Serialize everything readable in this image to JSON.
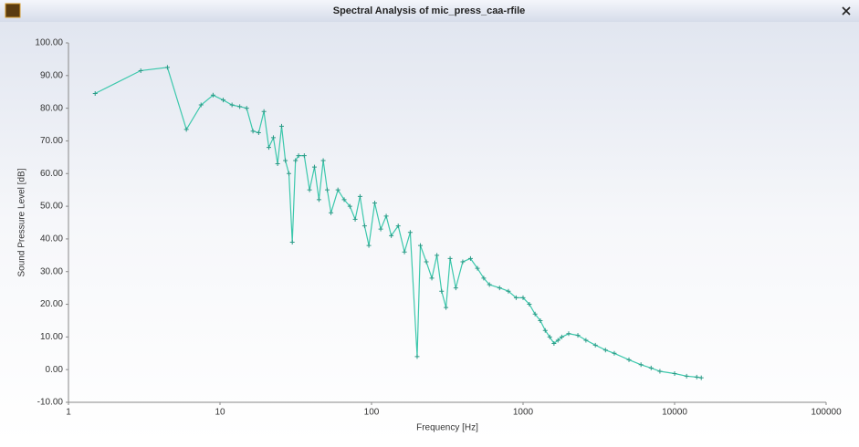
{
  "chart_data": {
    "type": "line",
    "title": "Spectral Analysis of mic_press_caa-rfile",
    "x_label": "Frequency [Hz]",
    "y_label": "Sound Pressure Level [dB]",
    "xscale": "log",
    "grid": false,
    "color": "#3cc8ac",
    "xlim": [
      1,
      100000
    ],
    "xticks": [
      1,
      10,
      100,
      1000,
      10000,
      100000
    ],
    "ylim": [
      -10,
      100
    ],
    "yticks": [
      {
        "value": 100,
        "label": "100.00"
      },
      {
        "value": 90,
        "label": "90.00"
      },
      {
        "value": 80,
        "label": "80.00"
      },
      {
        "value": 70,
        "label": "70.00"
      },
      {
        "value": 60,
        "label": "60.00"
      },
      {
        "value": 50,
        "label": "50.00"
      },
      {
        "value": 40,
        "label": "40.00"
      },
      {
        "value": 30,
        "label": "30.00"
      },
      {
        "value": 20,
        "label": "20.00"
      },
      {
        "value": 10,
        "label": "10.00"
      },
      {
        "value": 0,
        "label": "0.00"
      },
      {
        "value": -10,
        "label": "-10.00"
      }
    ],
    "x": [
      1.5,
      3,
      4.5,
      6,
      7.5,
      9,
      10.5,
      12,
      13.5,
      15,
      16.5,
      18,
      19.5,
      21,
      22.5,
      24,
      25.5,
      27,
      28.5,
      30,
      31.5,
      33,
      36,
      39,
      42,
      45,
      48,
      51,
      54,
      60,
      66,
      72,
      78,
      84,
      90,
      96,
      105,
      115,
      125,
      135,
      150,
      165,
      180,
      200,
      210,
      230,
      250,
      270,
      290,
      310,
      330,
      360,
      400,
      450,
      500,
      550,
      600,
      700,
      800,
      900,
      1000,
      1100,
      1200,
      1300,
      1400,
      1500,
      1600,
      1700,
      1800,
      2000,
      2300,
      2600,
      3000,
      3500,
      4000,
      5000,
      6000,
      7000,
      8000,
      10000,
      12000,
      14000,
      15000
    ],
    "values": [
      84.5,
      91.5,
      92.5,
      73.5,
      81,
      84,
      82.5,
      81,
      80.5,
      80,
      73,
      72.5,
      79,
      68,
      71,
      63,
      74.5,
      64,
      60,
      39,
      64,
      65.5,
      65.5,
      55,
      62,
      52,
      64,
      55,
      48,
      55,
      52,
      50,
      46,
      53,
      44,
      38,
      51,
      43,
      47,
      41,
      44,
      36,
      42,
      4,
      38,
      33,
      28,
      35,
      24,
      19,
      34,
      25,
      33,
      34,
      31,
      28,
      26,
      25,
      24,
      22,
      22,
      20,
      17,
      15,
      12,
      10,
      8,
      9,
      10,
      11,
      10.5,
      9,
      7.5,
      6,
      5,
      3,
      1.5,
      0.5,
      -0.5,
      -1.2,
      -2,
      -2.3,
      -2.5
    ]
  }
}
